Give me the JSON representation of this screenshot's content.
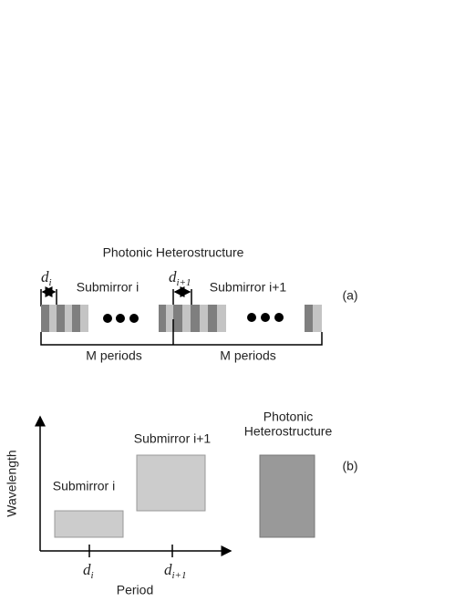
{
  "panel_a": {
    "title": "Photonic Heterostructure",
    "period_1": {
      "base": "d",
      "sub": "i"
    },
    "submirror_1": "Submirror i",
    "period_2": {
      "base": "d",
      "sub": "i+1"
    },
    "submirror_2": "Submirror i+1",
    "label": "(a)",
    "bracket_1": "M periods",
    "bracket_2": "M periods"
  },
  "panel_b": {
    "y_axis": "Wavelength",
    "x_axis": "Period",
    "tick_1": {
      "base": "d",
      "sub": "i"
    },
    "tick_2": {
      "base": "d",
      "sub": "i+1"
    },
    "box_1": "Submirror i",
    "box_2": "Submirror i+1",
    "box_3": [
      "Photonic",
      "Heterostructure"
    ],
    "label": "(b)"
  }
}
